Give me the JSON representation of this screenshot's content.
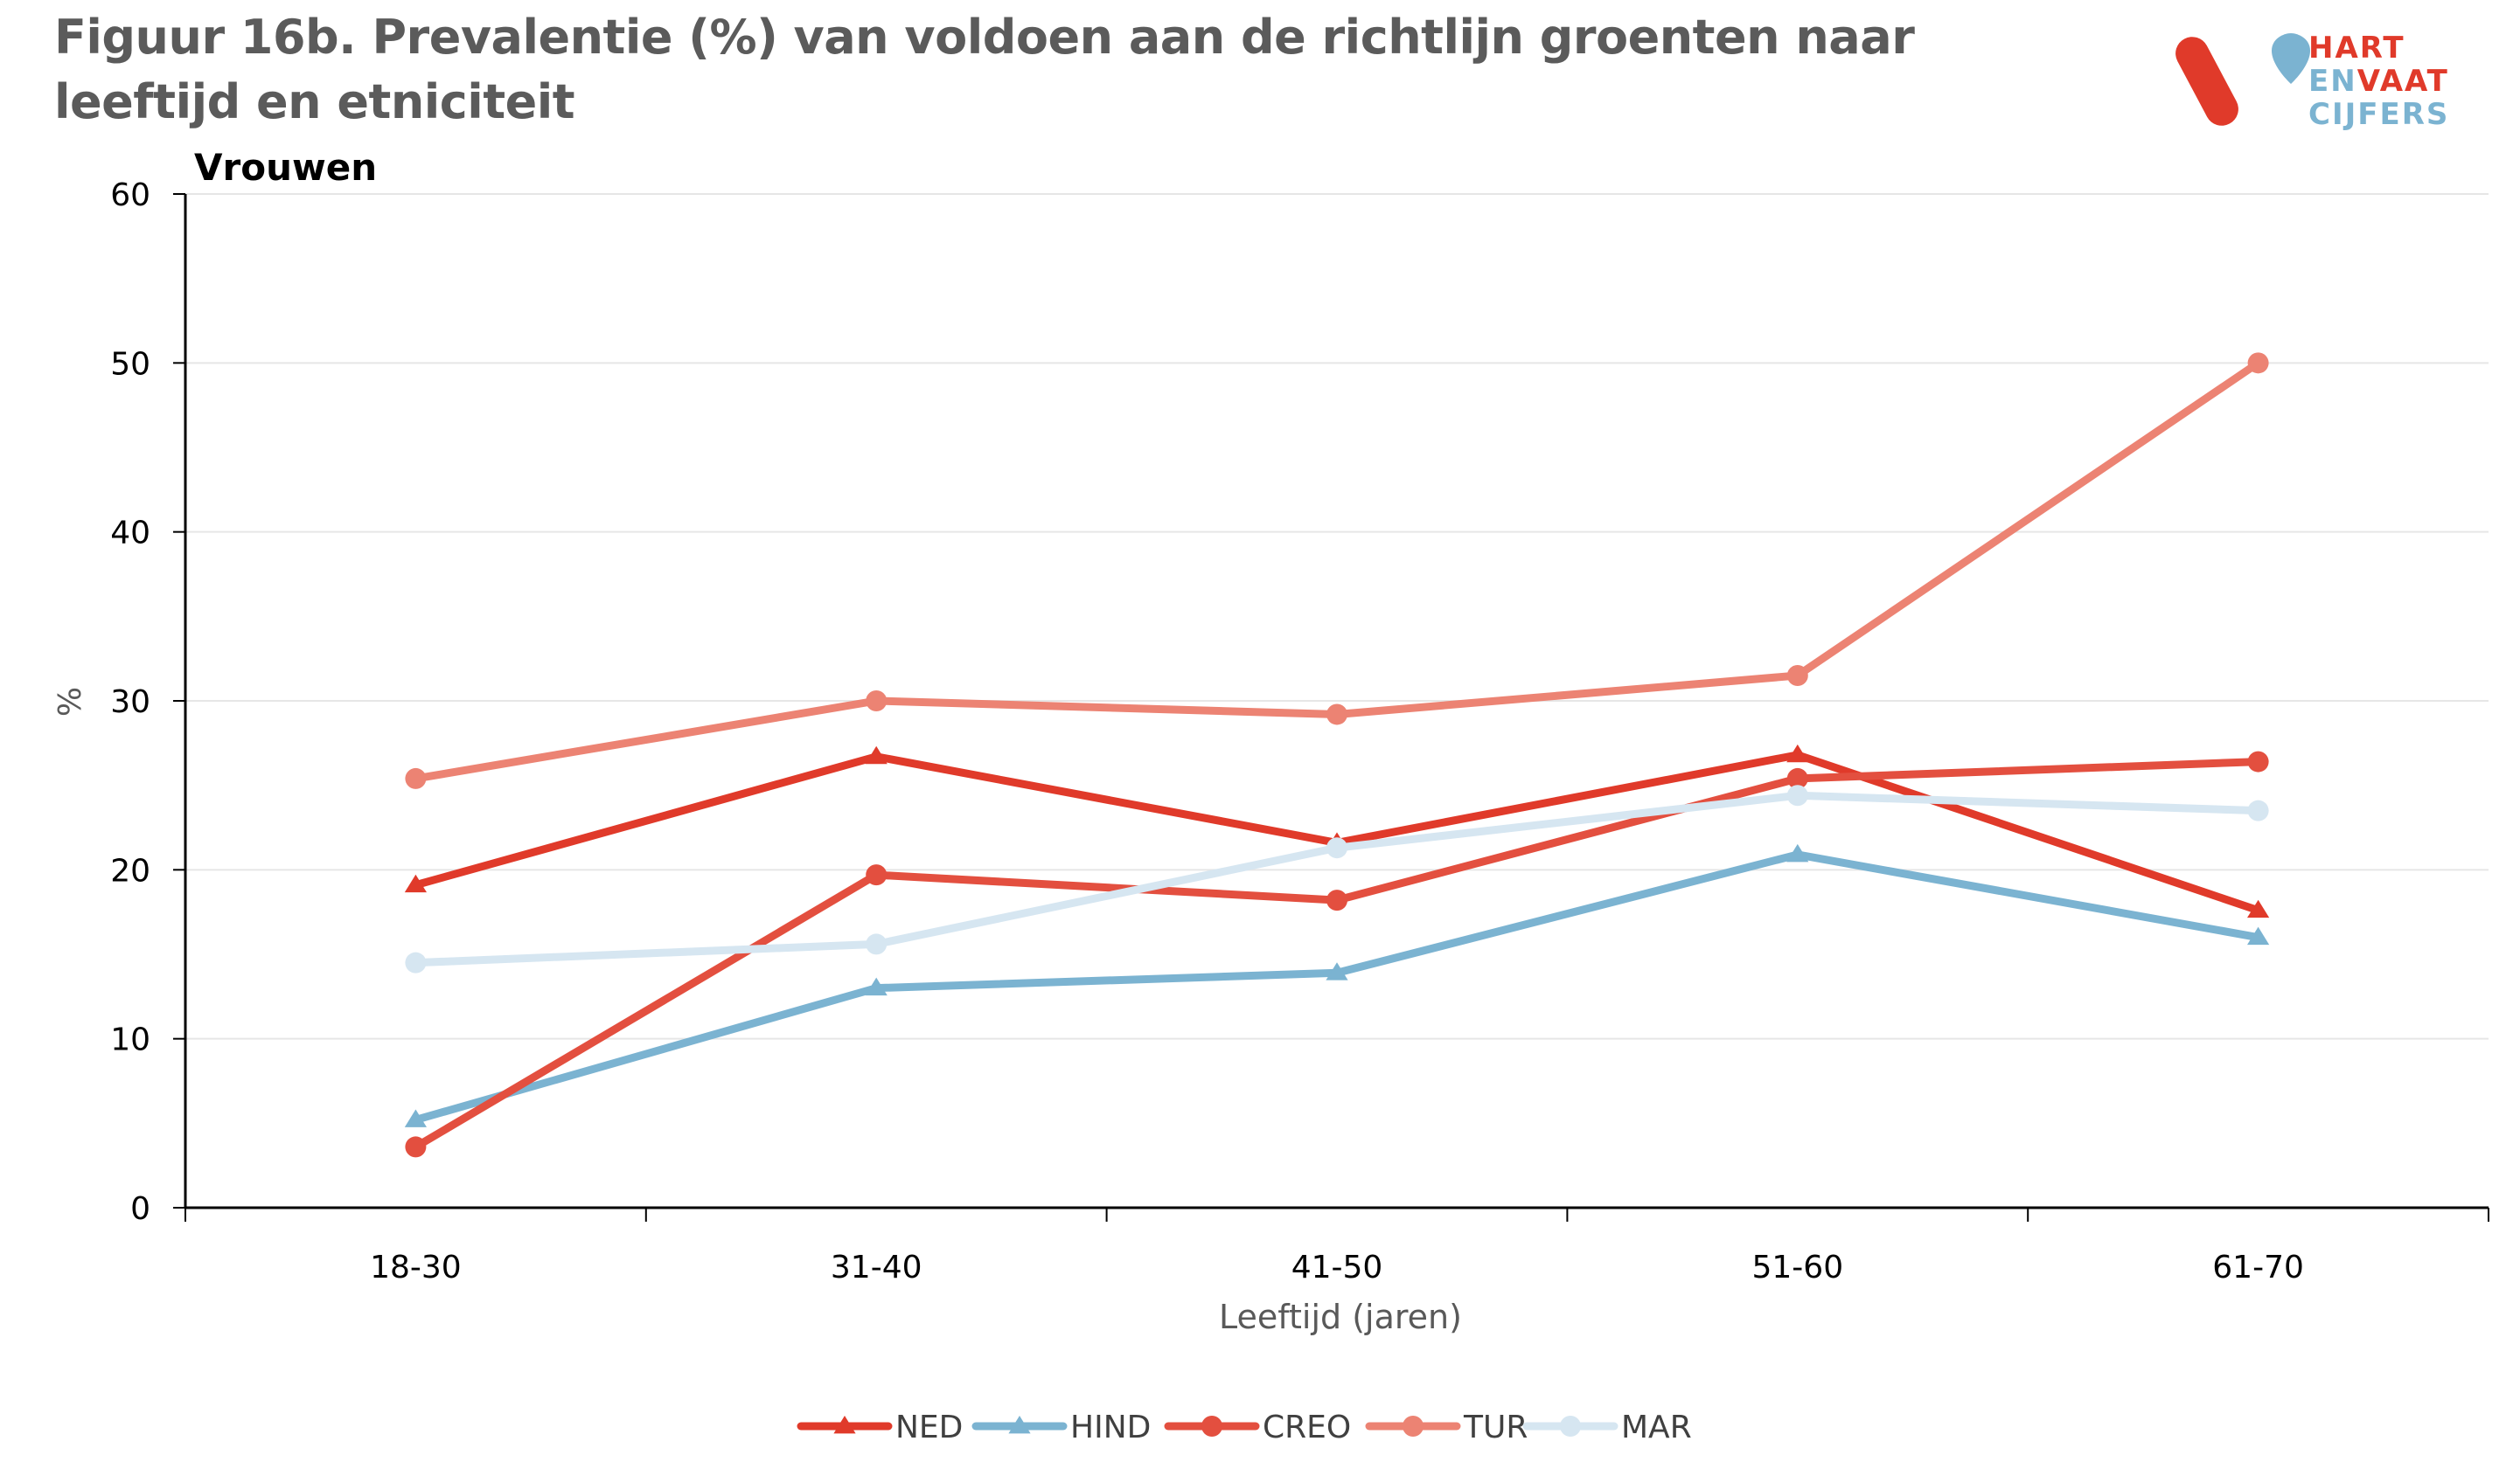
{
  "title": "Figuur 16b. Prevalentie (%) van  voldoen aan de richtlijn groenten naar leeftijd en etniciteit",
  "logo": {
    "line1": "HART",
    "line2a": "EN",
    "line2b": "VAAT",
    "line3": "CIJFERS"
  },
  "chart_data": {
    "type": "line",
    "subtitle": "Vrouwen",
    "xlabel": "Leeftijd (jaren)",
    "ylabel": "%",
    "categories": [
      "18-30",
      "31-40",
      "41-50",
      "51-60",
      "61-70"
    ],
    "ylim": [
      0,
      60
    ],
    "yticks": [
      0,
      10,
      20,
      30,
      40,
      50,
      60
    ],
    "grid": true,
    "legend_position": "bottom",
    "series": [
      {
        "name": "NED",
        "values": [
          19.1,
          26.7,
          21.6,
          26.8,
          17.6
        ],
        "color": "#e03a2a",
        "marker": "triangle"
      },
      {
        "name": "HIND",
        "values": [
          5.2,
          13.0,
          13.9,
          20.9,
          16.0
        ],
        "color": "#7bb3d1",
        "marker": "triangle"
      },
      {
        "name": "CREO",
        "values": [
          3.6,
          19.7,
          18.2,
          25.4,
          26.4
        ],
        "color": "#e34f3f",
        "marker": "circle"
      },
      {
        "name": "TUR",
        "values": [
          25.4,
          30.0,
          29.2,
          31.5,
          50.0
        ],
        "color": "#ec8373",
        "marker": "circle"
      },
      {
        "name": "MAR",
        "values": [
          14.5,
          15.6,
          21.3,
          24.4,
          23.5
        ],
        "color": "#d6e6f1",
        "marker": "circle"
      }
    ]
  }
}
